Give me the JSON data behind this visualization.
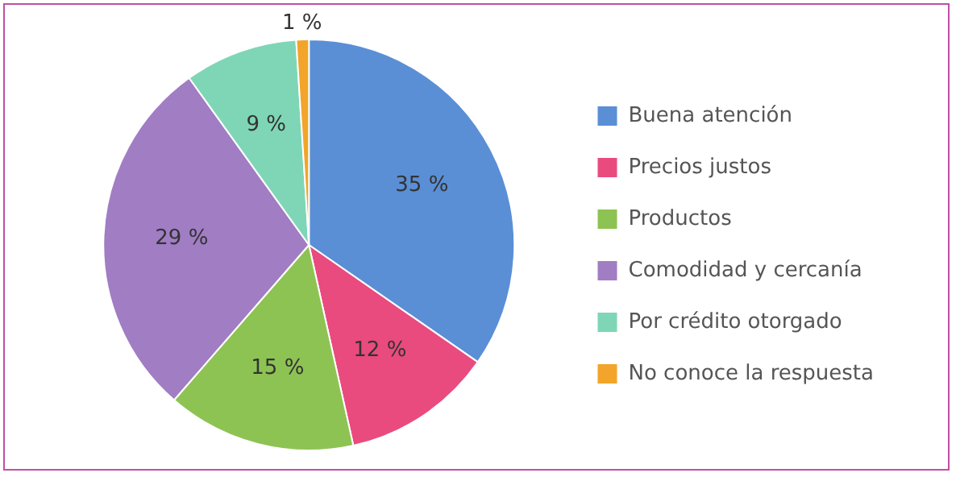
{
  "chart_data": {
    "type": "pie",
    "categories": [
      "Buena atención",
      "Precios justos",
      "Productos",
      "Comodidad y cercanía",
      "Por crédito otorgado",
      "No conoce la respuesta"
    ],
    "values": [
      35,
      12,
      15,
      29,
      9,
      1
    ],
    "value_labels": [
      "35 %",
      "12 %",
      "15 %",
      "29 %",
      "9 %",
      "1 %"
    ],
    "colors": [
      "#5a8fd6",
      "#e94b7f",
      "#8dc353",
      "#a17dc4",
      "#7fd6b6",
      "#f2a52a"
    ],
    "legend": "right"
  }
}
